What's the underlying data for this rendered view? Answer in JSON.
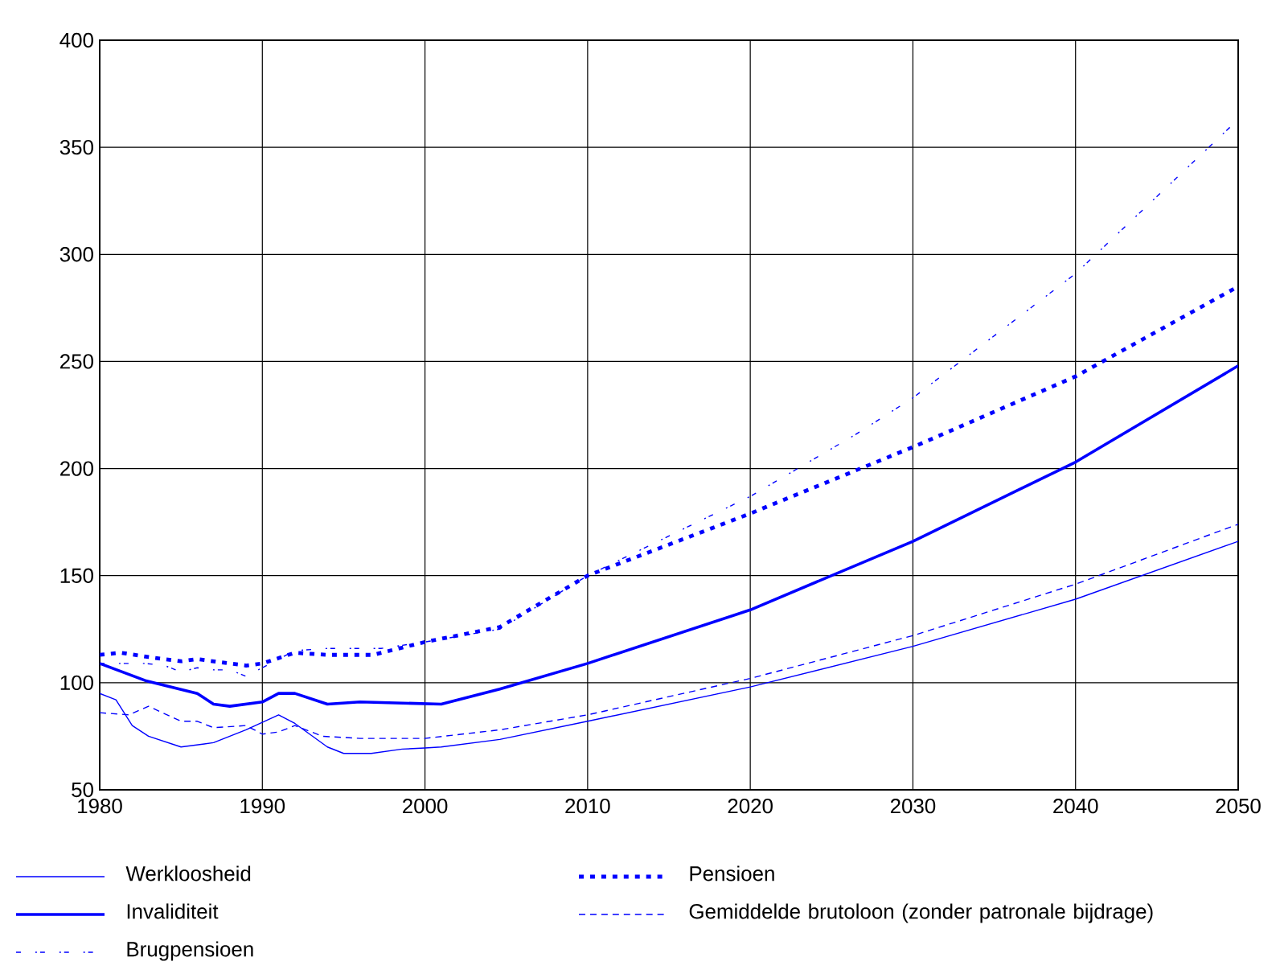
{
  "chart_data": {
    "type": "line",
    "xlim": [
      1980,
      2050
    ],
    "ylim": [
      50,
      400
    ],
    "xticks": [
      1980,
      1990,
      2000,
      2010,
      2020,
      2030,
      2040,
      2050
    ],
    "yticks": [
      50,
      100,
      150,
      200,
      250,
      300,
      350,
      400
    ],
    "grid": true,
    "legend": "bottom",
    "series": [
      {
        "name": "Werkloosheid",
        "color": "#0000ff",
        "line_style": "solid",
        "x": [
          1980,
          1981,
          1982,
          1983,
          1985,
          1987,
          1989,
          1991,
          1992,
          1994,
          1995,
          1996.7,
          1998.6,
          2000,
          2001,
          2004.6,
          2010,
          2020,
          2030,
          2040,
          2050
        ],
        "values": [
          95,
          92,
          80,
          75,
          70,
          72,
          78,
          85,
          81,
          70,
          67,
          67,
          69,
          69.5,
          70,
          73.5,
          82,
          98,
          117,
          139,
          166
        ]
      },
      {
        "name": "Invaliditeit",
        "color": "#0000ff",
        "line_style": "solid",
        "x": [
          1980,
          1982.8,
          1986,
          1987,
          1988,
          1990,
          1991,
          1992,
          1994,
          1996,
          2001,
          2004.6,
          2010,
          2020,
          2030,
          2040,
          2050
        ],
        "values": [
          109,
          101,
          95,
          90,
          89,
          91,
          95,
          95,
          90,
          91,
          90,
          97,
          109,
          134,
          166,
          203,
          248
        ]
      },
      {
        "name": "Brugpensioen",
        "color": "#0000ff",
        "line_style": "dashed",
        "x": [
          1980,
          1982.8,
          1984,
          1985,
          1986,
          1987,
          1988,
          1989,
          1990,
          1992,
          1994,
          1997.3,
          2000,
          2004.6,
          2010,
          2020,
          2026.5,
          2030,
          2040,
          2050
        ],
        "values": [
          109,
          109,
          108,
          105,
          107,
          106,
          106,
          103,
          107,
          115,
          116,
          116,
          119,
          125,
          150,
          187,
          216,
          233,
          291,
          363
        ]
      },
      {
        "name": "Pensioen",
        "color": "#0000ff",
        "line_style": "dotted",
        "x": [
          1980,
          1981.3,
          1983,
          1985,
          1986,
          1989,
          1990,
          1992,
          1994,
          1996.8,
          2000,
          2004.6,
          2010,
          2020,
          2030,
          2040,
          2050
        ],
        "values": [
          113,
          114,
          112,
          110,
          111,
          108,
          109,
          114,
          113,
          113,
          119,
          126,
          150,
          179,
          210,
          243,
          285
        ]
      },
      {
        "name": "Gemiddelde brutoloon (zonder patronale bijdrage)",
        "color": "#0000ff",
        "line_style": "dashed",
        "x": [
          1980,
          1981.8,
          1983,
          1985,
          1986,
          1987,
          1989,
          1990,
          1991,
          1992,
          1993.7,
          1996,
          2000,
          2004.6,
          2010,
          2020,
          2030,
          2040,
          2050
        ],
        "values": [
          86,
          85,
          89,
          82,
          82,
          79,
          80,
          76,
          77,
          80,
          75,
          74,
          74,
          78,
          85,
          102,
          122,
          146,
          174
        ]
      }
    ]
  }
}
